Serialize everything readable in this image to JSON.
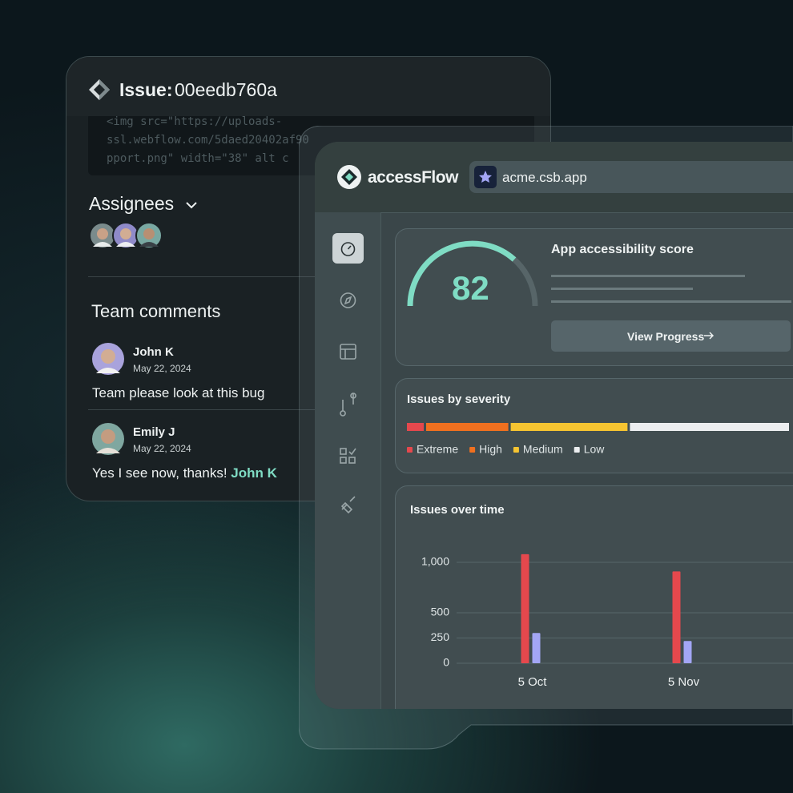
{
  "issue_card": {
    "label": "Issue:",
    "id": "00eedb760a",
    "code": [
      "<img src=\"https://uploads-",
      "ssl.webflow.com/5daed20402af90",
      "pport.png\" width=\"38\" alt c"
    ],
    "assignees_title": "Assignees",
    "comments_title": "Team comments",
    "comments": [
      {
        "author": "John K",
        "date": "May 22, 2024",
        "text": "Team please look at this bug"
      },
      {
        "author": "Emily J",
        "date": "May 22, 2024",
        "text": "Yes I see now, thanks!",
        "mention": "John K"
      }
    ]
  },
  "dashboard": {
    "brand": "accessFlow",
    "url": "acme.csb.app",
    "score_title": "App accessibility score",
    "score": "82",
    "button": "View Progress"
  },
  "chart_data": [
    {
      "type": "stacked-bar",
      "title": "Issues by severity",
      "series": [
        {
          "name": "Extreme",
          "color": "#e5484d",
          "values": [
            5
          ]
        },
        {
          "name": "High",
          "color": "#f0701f",
          "values": [
            22
          ]
        },
        {
          "name": "Medium",
          "color": "#f6c431",
          "values": [
            31
          ]
        },
        {
          "name": "Low",
          "color": "#eceef0",
          "values": [
            42
          ]
        }
      ]
    },
    {
      "type": "bar",
      "title": "Issues over time",
      "categories": [
        "5 Oct",
        "5 Nov"
      ],
      "series": [
        {
          "color": "#e5484d",
          "values": [
            1080,
            910
          ]
        },
        {
          "color": "#a3a6f5",
          "values": [
            300,
            220
          ]
        }
      ],
      "ylim": [
        0,
        1100
      ],
      "yticks": [
        0,
        250,
        500,
        {
          "value": 1000,
          "label": "1,000"
        }
      ],
      "grid": true
    }
  ]
}
